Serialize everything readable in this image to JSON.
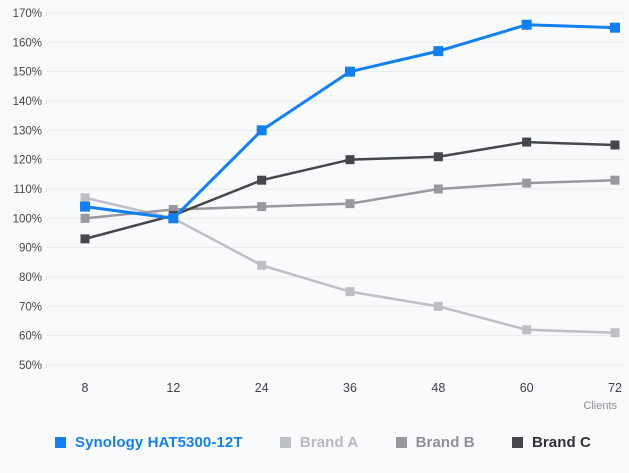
{
  "style": {
    "background": "#f9fafb",
    "grid_color": "#e8eaed",
    "y_label_color": "#46484a",
    "x_label_color": "#3f4245",
    "axis_title_color": "#8b8e91"
  },
  "chart_data": {
    "type": "line",
    "title": "",
    "xlabel": "Clients",
    "ylabel": "",
    "categories": [
      "8",
      "12",
      "24",
      "36",
      "48",
      "60",
      "72"
    ],
    "ylim": [
      50,
      170
    ],
    "ytick_step": 10,
    "ytick_suffix": "%",
    "grid": "horizontal",
    "legend_position": "bottom",
    "marker": "square",
    "series": [
      {
        "name": "Synology HAT5300-12T",
        "color": "#1280f2",
        "text_color": "#1280f2",
        "emphasis": true,
        "values": [
          104,
          100,
          130,
          150,
          157,
          166,
          165
        ]
      },
      {
        "name": "Brand A",
        "color": "#bdc0c3",
        "text_color": "#b7babd",
        "emphasis": false,
        "values": [
          107,
          100,
          84,
          75,
          70,
          62,
          61
        ]
      },
      {
        "name": "Brand B",
        "color": "#97999c",
        "text_color": "#8e9194",
        "emphasis": false,
        "values": [
          100,
          103,
          104,
          105,
          110,
          112,
          113
        ]
      },
      {
        "name": "Brand C",
        "color": "#44484d",
        "text_color": "#2e3237",
        "emphasis": false,
        "values": [
          93,
          101,
          113,
          120,
          121,
          126,
          125
        ]
      }
    ]
  }
}
